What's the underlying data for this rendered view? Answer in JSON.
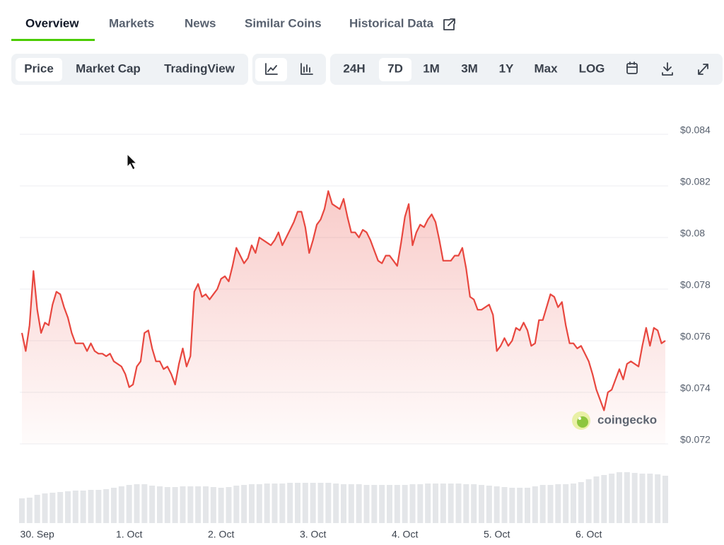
{
  "tabs": [
    "Overview",
    "Markets",
    "News",
    "Similar Coins",
    "Historical Data"
  ],
  "active_tab": 0,
  "metric_buttons": [
    "Price",
    "Market Cap",
    "TradingView"
  ],
  "active_metric": 0,
  "range_buttons": [
    "24H",
    "7D",
    "1M",
    "3M",
    "1Y",
    "Max",
    "LOG"
  ],
  "active_range": 1,
  "chart_data": {
    "type": "line",
    "color": "#e8473f",
    "values": [
      0.0763,
      0.0756,
      0.0766,
      0.0787,
      0.0772,
      0.0763,
      0.0767,
      0.0766,
      0.0774,
      0.0779,
      0.0778,
      0.0773,
      0.0769,
      0.0763,
      0.0759,
      0.0759,
      0.0759,
      0.0756,
      0.0759,
      0.0756,
      0.0755,
      0.0755,
      0.0754,
      0.0755,
      0.0752,
      0.0751,
      0.075,
      0.0747,
      0.0742,
      0.0743,
      0.075,
      0.0752,
      0.0763,
      0.0764,
      0.0757,
      0.0752,
      0.0752,
      0.0749,
      0.075,
      0.0747,
      0.0743,
      0.0751,
      0.0757,
      0.075,
      0.0754,
      0.0779,
      0.0782,
      0.0777,
      0.0778,
      0.0776,
      0.0778,
      0.078,
      0.0784,
      0.0785,
      0.0783,
      0.0789,
      0.0796,
      0.0793,
      0.079,
      0.0792,
      0.0797,
      0.0794,
      0.08,
      0.0799,
      0.0798,
      0.0797,
      0.0799,
      0.0802,
      0.0797,
      0.08,
      0.0803,
      0.0806,
      0.081,
      0.081,
      0.0804,
      0.0794,
      0.0799,
      0.0805,
      0.0807,
      0.0811,
      0.0818,
      0.0813,
      0.0812,
      0.0811,
      0.0815,
      0.0808,
      0.0802,
      0.0802,
      0.08,
      0.0803,
      0.0802,
      0.0799,
      0.0795,
      0.0791,
      0.079,
      0.0793,
      0.0793,
      0.0791,
      0.0789,
      0.0798,
      0.0808,
      0.0813,
      0.0797,
      0.0802,
      0.0805,
      0.0804,
      0.0807,
      0.0809,
      0.0806,
      0.0799,
      0.0791,
      0.0791,
      0.0791,
      0.0793,
      0.0793,
      0.0796,
      0.0788,
      0.0777,
      0.0776,
      0.0772,
      0.0772,
      0.0773,
      0.0774,
      0.077,
      0.0756,
      0.0758,
      0.0761,
      0.0758,
      0.076,
      0.0765,
      0.0764,
      0.0767,
      0.0764,
      0.0758,
      0.0759,
      0.0768,
      0.0768,
      0.0773,
      0.0778,
      0.0777,
      0.0773,
      0.0775,
      0.0766,
      0.0759,
      0.0759,
      0.0757,
      0.0758,
      0.0755,
      0.0752,
      0.0747,
      0.0741,
      0.0737,
      0.0733,
      0.074,
      0.0741,
      0.0745,
      0.0749,
      0.0745,
      0.0751,
      0.0752,
      0.0751,
      0.075,
      0.0758,
      0.0765,
      0.0758,
      0.0765,
      0.0764,
      0.0759,
      0.076
    ],
    "volume_values": [
      35,
      36,
      40,
      42,
      43,
      44,
      45,
      46,
      46,
      47,
      47,
      48,
      50,
      52,
      54,
      55,
      55,
      53,
      52,
      51,
      51,
      52,
      52,
      52,
      52,
      51,
      50,
      51,
      53,
      54,
      55,
      55,
      56,
      56,
      56,
      57,
      57,
      57,
      57,
      57,
      57,
      56,
      55,
      55,
      55,
      54,
      54,
      54,
      54,
      54,
      54,
      55,
      55,
      56,
      56,
      56,
      56,
      56,
      55,
      55,
      54,
      53,
      52,
      51,
      50,
      50,
      50,
      52,
      54,
      54,
      55,
      55,
      56,
      58,
      62,
      66,
      68,
      70,
      72,
      72,
      71,
      70,
      70,
      69,
      67
    ],
    "xlim": [
      0,
      168
    ],
    "xticks": [
      {
        "value": 4,
        "label": "30. Sep"
      },
      {
        "value": 28,
        "label": "1. Oct"
      },
      {
        "value": 52,
        "label": "2. Oct"
      },
      {
        "value": 76,
        "label": "3. Oct"
      },
      {
        "value": 100,
        "label": "4. Oct"
      },
      {
        "value": 124,
        "label": "5. Oct"
      },
      {
        "value": 148,
        "label": "6. Oct"
      }
    ],
    "ylim": [
      0.072,
      0.084
    ],
    "yticks": [
      {
        "value": 0.072,
        "label": "$0.072"
      },
      {
        "value": 0.074,
        "label": "$0.074"
      },
      {
        "value": 0.076,
        "label": "$0.076"
      },
      {
        "value": 0.078,
        "label": "$0.078"
      },
      {
        "value": 0.08,
        "label": "$0.08"
      },
      {
        "value": 0.082,
        "label": "$0.082"
      },
      {
        "value": 0.084,
        "label": "$0.084"
      }
    ],
    "grid": true,
    "watermark": "coingecko"
  }
}
